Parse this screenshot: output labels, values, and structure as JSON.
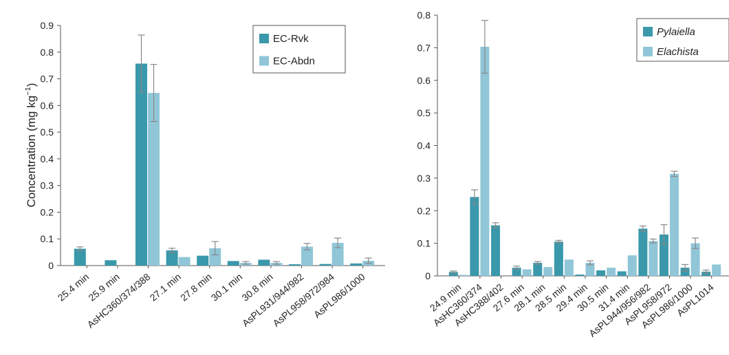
{
  "colors": {
    "dark": "#3a98ab",
    "light": "#90c6d8"
  },
  "chart_data": [
    {
      "type": "bar",
      "ylabel": "Concentration (mg kg",
      "ylabel_sup": "−1",
      "ylabel_end": ")",
      "ylim": [
        0,
        0.9
      ],
      "yticks": [
        "0",
        "0.1",
        "0.2",
        "0.3",
        "0.4",
        "0.5",
        "0.6",
        "0.7",
        "0.8",
        "0.9"
      ],
      "legend_position": "top-right",
      "categories": [
        "25.4 min",
        "25.9 min",
        "AsHC360/374/388",
        "27.1 min",
        "27.8 min",
        "30.1 min",
        "30.8 min",
        "AsPL931/944/982",
        "AsPL958/972/984",
        "AsPL986/1000"
      ],
      "series": [
        {
          "name": "EC-Rvk",
          "values": [
            0.063,
            0.02,
            0.757,
            0.057,
            0.037,
            0.017,
            0.022,
            0.005,
            0.006,
            0.008
          ],
          "errors": [
            0.007,
            0.0,
            0.107,
            0.008,
            0.0,
            0.0,
            0.0,
            0.0,
            0.0,
            0.0
          ]
        },
        {
          "name": "EC-Abdn",
          "values": [
            null,
            null,
            0.647,
            0.032,
            0.065,
            0.01,
            0.01,
            0.071,
            0.085,
            0.018
          ],
          "errors": [
            0,
            0,
            0.107,
            0.0,
            0.025,
            0.005,
            0.005,
            0.012,
            0.018,
            0.01
          ]
        }
      ]
    },
    {
      "type": "bar",
      "ylim": [
        0,
        0.8
      ],
      "yticks": [
        "0",
        "0.1",
        "0.2",
        "0.3",
        "0.4",
        "0.5",
        "0.6",
        "0.7",
        "0.8"
      ],
      "legend_position": "top-right",
      "categories": [
        "24.9 min",
        "AsHC360/374",
        "AsHC388/402",
        "27.6 min",
        "28.1 min",
        "28.5 min",
        "29.4 min",
        "30.5 min",
        "31.4 min",
        "AsPL944/956/982",
        "AsPL958/972",
        "AsPL986/1000",
        "AsPL1014"
      ],
      "series": [
        {
          "name": "Pylaiella",
          "values": [
            0.012,
            0.242,
            0.155,
            0.025,
            0.04,
            0.105,
            0.004,
            0.017,
            0.014,
            0.145,
            0.127,
            0.025,
            0.013
          ],
          "errors": [
            0.003,
            0.022,
            0.008,
            0.005,
            0.004,
            0.004,
            0.0,
            0.0,
            0.0,
            0.008,
            0.03,
            0.01,
            0.005
          ]
        },
        {
          "name": "Elachista",
          "values": [
            0.003,
            0.703,
            null,
            0.02,
            0.027,
            0.05,
            0.04,
            0.025,
            0.063,
            0.107,
            0.313,
            0.1,
            0.035
          ],
          "errors": [
            0.0,
            0.081,
            0,
            0.0,
            0.0,
            0.0,
            0.006,
            0.0,
            0.0,
            0.006,
            0.008,
            0.016,
            0.0
          ]
        }
      ]
    }
  ]
}
